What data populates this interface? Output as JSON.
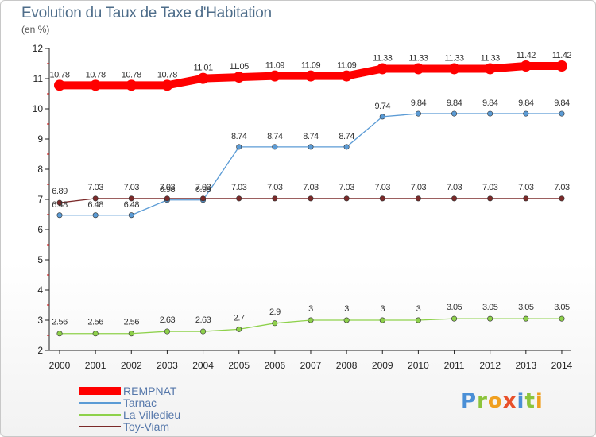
{
  "title": "Evolution du Taux de Taxe d'Habitation",
  "unit_label": "(en %)",
  "logo_text": "Proxiti",
  "chart_data": {
    "type": "line",
    "title": "Evolution du Taux de Taxe d'Habitation",
    "ylabel": "(en %)",
    "xlabel": "",
    "x": [
      "2000",
      "2001",
      "2002",
      "2003",
      "2004",
      "2005",
      "2006",
      "2007",
      "2008",
      "2009",
      "2010",
      "2011",
      "2012",
      "2013",
      "2014"
    ],
    "ylim": [
      2,
      12
    ],
    "yticks": [
      2,
      3,
      4,
      5,
      6,
      7,
      8,
      9,
      10,
      11,
      12
    ],
    "grid": false,
    "legend_position": "bottom-left",
    "series": [
      {
        "name": "REMPNAT",
        "color": "#ff0000",
        "values": [
          10.78,
          10.78,
          10.78,
          10.78,
          11.01,
          11.05,
          11.09,
          11.09,
          11.09,
          11.33,
          11.33,
          11.33,
          11.33,
          11.42,
          11.42
        ],
        "labels": [
          "10.78",
          "10.78",
          "10.78",
          "10.78",
          "11.01",
          "11.05",
          "11.09",
          "11.09",
          "11.09",
          "11.33",
          "11.33",
          "11.33",
          "11.33",
          "11.42",
          "11.42"
        ]
      },
      {
        "name": "Tarnac",
        "color": "#5b9bd5",
        "values": [
          6.48,
          6.48,
          6.48,
          6.98,
          6.98,
          8.74,
          8.74,
          8.74,
          8.74,
          9.74,
          9.84,
          9.84,
          9.84,
          9.84,
          9.84
        ],
        "labels": [
          "6.48",
          "6.48",
          "6.48",
          "6.98",
          "6.98",
          "8.74",
          "8.74",
          "8.74",
          "8.74",
          "9.74",
          "9.84",
          "9.84",
          "9.84",
          "9.84",
          "9.84"
        ]
      },
      {
        "name": "La Villedieu",
        "color": "#8ed14b",
        "values": [
          2.56,
          2.56,
          2.56,
          2.63,
          2.63,
          2.7,
          2.9,
          3,
          3,
          3,
          3,
          3.05,
          3.05,
          3.05,
          3.05
        ],
        "labels": [
          "2.56",
          "2.56",
          "2.56",
          "2.63",
          "2.63",
          "2.7",
          "2.9",
          "3",
          "3",
          "3",
          "3",
          "3.05",
          "3.05",
          "3.05",
          "3.05"
        ]
      },
      {
        "name": "Toy-Viam",
        "color": "#7b2a2a",
        "values": [
          6.89,
          7.03,
          7.03,
          7.03,
          7.03,
          7.03,
          7.03,
          7.03,
          7.03,
          7.03,
          7.03,
          7.03,
          7.03,
          7.03,
          7.03
        ],
        "labels": [
          "6.89",
          "7.03",
          "7.03",
          "7.03",
          "7.03",
          "7.03",
          "7.03",
          "7.03",
          "7.03",
          "7.03",
          "7.03",
          "7.03",
          "7.03",
          "7.03",
          "7.03"
        ]
      }
    ]
  }
}
